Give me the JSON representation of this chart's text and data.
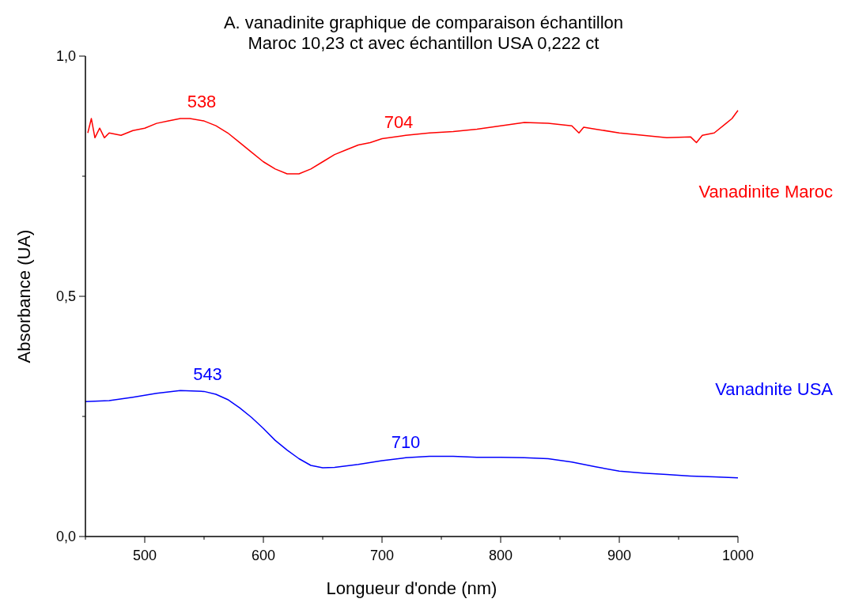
{
  "chart_data": {
    "type": "line",
    "title": "A. vanadinite graphique de comparaison échantillon\nMaroc 10,23 ct avec échantillon USA 0,222 ct",
    "xlabel": "Longueur d'onde (nm)",
    "ylabel": "Absorbance (UA)",
    "xlim": [
      450,
      1000
    ],
    "xticks": [
      500,
      600,
      700,
      800,
      900,
      1000
    ],
    "ylim": [
      0,
      1
    ],
    "yticks": [
      {
        "value": 0,
        "label": "0,0"
      },
      {
        "value": 0.5,
        "label": "0,5"
      },
      {
        "value": 1,
        "label": "1,0"
      }
    ],
    "series": [
      {
        "name": "Vanadinite Maroc",
        "color": "#ff0000",
        "x": [
          452,
          455,
          458,
          462,
          466,
          470,
          480,
          490,
          500,
          510,
          520,
          530,
          538,
          550,
          560,
          570,
          580,
          590,
          600,
          610,
          620,
          630,
          640,
          650,
          660,
          670,
          680,
          690,
          700,
          720,
          740,
          760,
          780,
          800,
          820,
          840,
          860,
          866,
          870,
          880,
          900,
          920,
          940,
          960,
          965,
          970,
          980,
          990,
          995,
          1000
        ],
        "values": [
          0.84,
          0.87,
          0.83,
          0.85,
          0.83,
          0.84,
          0.835,
          0.845,
          0.85,
          0.86,
          0.865,
          0.87,
          0.87,
          0.865,
          0.855,
          0.84,
          0.82,
          0.8,
          0.78,
          0.765,
          0.755,
          0.755,
          0.765,
          0.78,
          0.795,
          0.805,
          0.815,
          0.82,
          0.828,
          0.835,
          0.84,
          0.843,
          0.848,
          0.855,
          0.862,
          0.86,
          0.855,
          0.84,
          0.852,
          0.848,
          0.84,
          0.835,
          0.83,
          0.832,
          0.82,
          0.835,
          0.84,
          0.86,
          0.87,
          0.887
        ]
      },
      {
        "name": "Vanadnite USA",
        "color": "#0000ff",
        "x": [
          450,
          470,
          490,
          510,
          530,
          550,
          560,
          570,
          580,
          590,
          600,
          610,
          620,
          630,
          640,
          650,
          660,
          680,
          700,
          720,
          740,
          760,
          780,
          800,
          820,
          840,
          860,
          880,
          900,
          920,
          940,
          960,
          980,
          1000
        ],
        "values": [
          0.281,
          0.283,
          0.29,
          0.298,
          0.304,
          0.302,
          0.296,
          0.285,
          0.268,
          0.248,
          0.225,
          0.2,
          0.18,
          0.162,
          0.148,
          0.143,
          0.144,
          0.15,
          0.158,
          0.164,
          0.167,
          0.167,
          0.165,
          0.165,
          0.164,
          0.162,
          0.155,
          0.145,
          0.136,
          0.132,
          0.129,
          0.126,
          0.124,
          0.122
        ]
      }
    ],
    "annotations": [
      {
        "text": "538",
        "x": 538,
        "y": 0.87
      },
      {
        "text": "704",
        "x": 704,
        "y": 0.828
      },
      {
        "text": "543",
        "x": 543,
        "y": 0.303
      },
      {
        "text": "710",
        "x": 710,
        "y": 0.161
      }
    ]
  }
}
